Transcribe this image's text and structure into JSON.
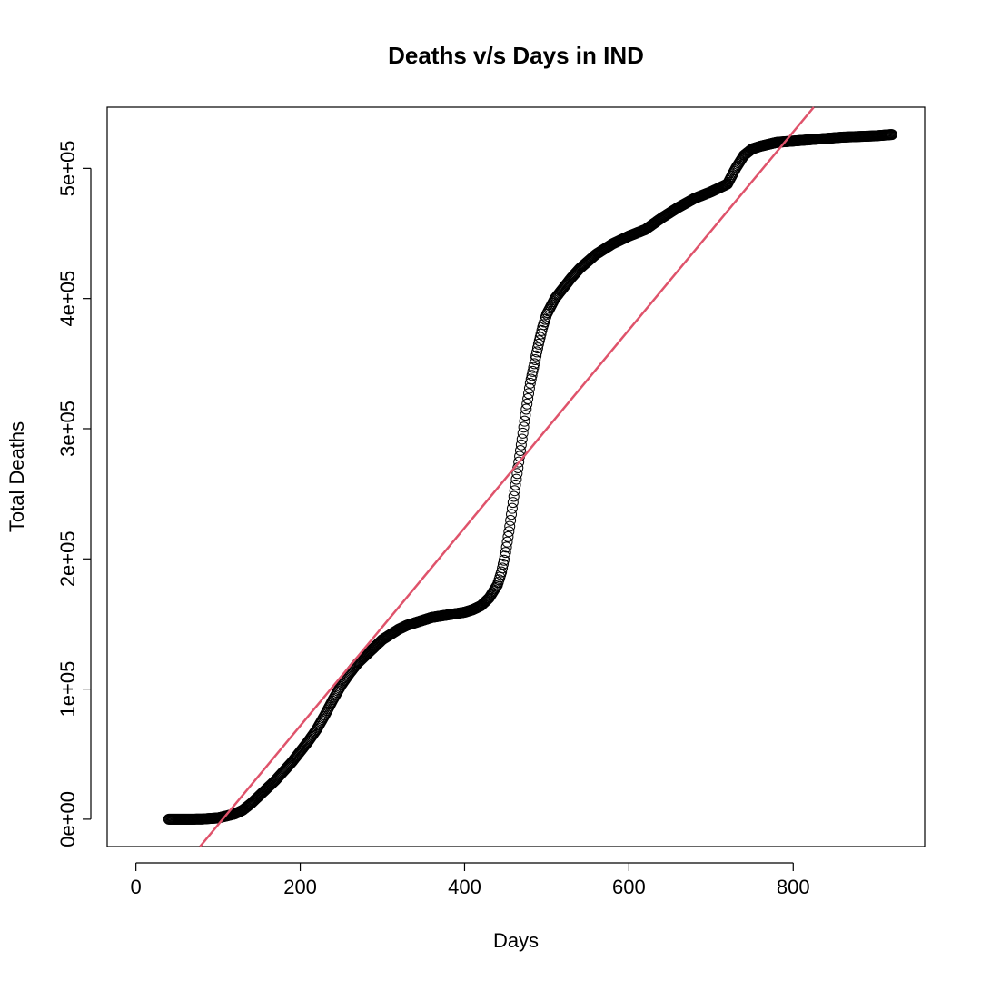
{
  "chart_data": {
    "type": "scatter",
    "title": "Deaths v/s Days in IND",
    "xlabel": "Days",
    "ylabel": "Total Deaths",
    "xlim": [
      -35,
      960
    ],
    "ylim": [
      -21000,
      547000
    ],
    "x_ticks": [
      0,
      200,
      400,
      600,
      800
    ],
    "x_tick_labels": [
      "0",
      "200",
      "400",
      "600",
      "800"
    ],
    "y_ticks": [
      0,
      100000,
      200000,
      300000,
      400000,
      500000
    ],
    "y_tick_labels": [
      "0e+00",
      "1e+05",
      "2e+05",
      "3e+05",
      "4e+05",
      "5e+05"
    ],
    "grid": false,
    "point_color": "#000000",
    "fit_line_color": "#DF536B",
    "series": [
      {
        "values_x": [
          40,
          60,
          80,
          100,
          110,
          120,
          130,
          140,
          150,
          160,
          170,
          180,
          190,
          200,
          210,
          220,
          230,
          240,
          250,
          260,
          270,
          280,
          290,
          300,
          310,
          320,
          330,
          340,
          350,
          360,
          370,
          380,
          390,
          400,
          410,
          420,
          430,
          440,
          445,
          450,
          455,
          460,
          465,
          470,
          475,
          480,
          485,
          490,
          495,
          500,
          505,
          510,
          520,
          530,
          540,
          560,
          580,
          600,
          620,
          640,
          660,
          680,
          700,
          720,
          730,
          740,
          750,
          760,
          780,
          800,
          820,
          840,
          860,
          880,
          900,
          920
        ],
        "values_y": [
          0,
          0,
          100,
          1000,
          2500,
          4000,
          7000,
          12000,
          18000,
          24000,
          30000,
          37000,
          44000,
          52000,
          60000,
          69000,
          80000,
          92000,
          103000,
          112000,
          120000,
          126000,
          132000,
          138000,
          142000,
          146000,
          149000,
          151000,
          153000,
          155000,
          156000,
          157000,
          158000,
          159000,
          161000,
          164000,
          170000,
          180000,
          190000,
          205000,
          225000,
          248000,
          270000,
          292000,
          315000,
          335000,
          350000,
          365000,
          378000,
          388000,
          394000,
          400000,
          408000,
          416000,
          423000,
          434000,
          442000,
          448000,
          453000,
          462000,
          470000,
          477000,
          482000,
          488000,
          500000,
          510000,
          515000,
          517000,
          520000,
          521000,
          522000,
          523000,
          524000,
          524500,
          525000,
          526000
        ]
      },
      {
        "type": "line",
        "values_x": [
          78,
          825
        ],
        "values_y": [
          -21000,
          547000
        ]
      }
    ]
  }
}
